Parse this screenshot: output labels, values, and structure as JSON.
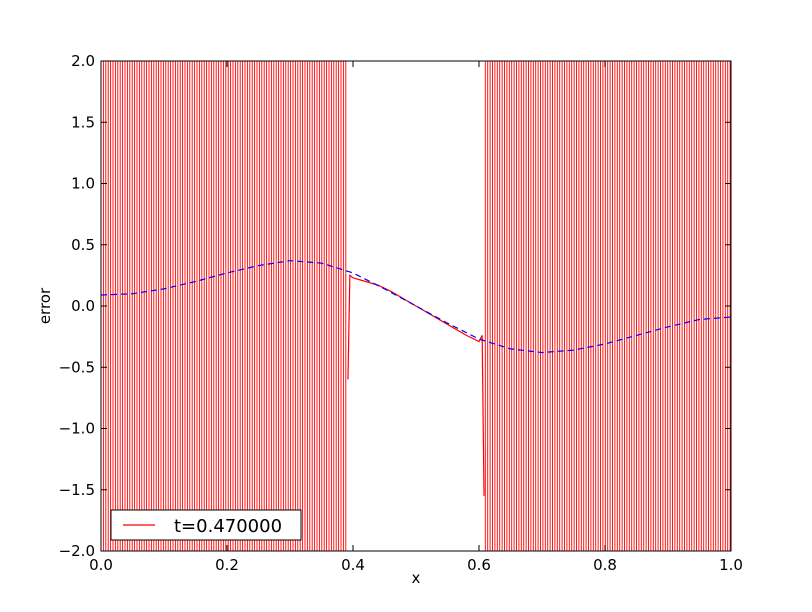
{
  "chart_data": {
    "type": "line",
    "title": "",
    "xlabel": "x",
    "ylabel": "error",
    "xlim": [
      0.0,
      1.0
    ],
    "ylim": [
      -2.0,
      2.0
    ],
    "grid": false,
    "legend_position": "lower-left",
    "x_ticks": [
      "0.0",
      "0.2",
      "0.4",
      "0.6",
      "0.8",
      "1.0"
    ],
    "y_ticks": [
      "−2.0",
      "−1.5",
      "−1.0",
      "−0.5",
      "0.0",
      "0.5",
      "1.0",
      "1.5",
      "2.0"
    ],
    "series": [
      {
        "name": "t=0.470000",
        "color": "#ff0000",
        "style": "solid",
        "oscillating_regions": [
          [
            0.0,
            0.39
          ],
          [
            0.61,
            1.0
          ]
        ],
        "oscillation_range": [
          -2.0,
          2.0
        ],
        "points": [
          [
            0.392,
            -0.6
          ],
          [
            0.395,
            0.25
          ],
          [
            0.4,
            0.23
          ],
          [
            0.42,
            0.2
          ],
          [
            0.44,
            0.17
          ],
          [
            0.46,
            0.12
          ],
          [
            0.48,
            0.06
          ],
          [
            0.5,
            0.0
          ],
          [
            0.52,
            -0.06
          ],
          [
            0.54,
            -0.12
          ],
          [
            0.56,
            -0.18
          ],
          [
            0.58,
            -0.24
          ],
          [
            0.6,
            -0.29
          ],
          [
            0.605,
            -0.24
          ],
          [
            0.608,
            -1.55
          ]
        ]
      },
      {
        "name": "",
        "color": "#0000ff",
        "style": "dashed",
        "x": [
          0.0,
          0.05,
          0.1,
          0.15,
          0.2,
          0.25,
          0.3,
          0.35,
          0.4,
          0.45,
          0.5,
          0.55,
          0.6,
          0.65,
          0.7,
          0.75,
          0.8,
          0.85,
          0.9,
          0.95,
          1.0
        ],
        "y": [
          0.09,
          0.1,
          0.14,
          0.2,
          0.27,
          0.33,
          0.37,
          0.35,
          0.27,
          0.14,
          0.0,
          -0.14,
          -0.27,
          -0.35,
          -0.38,
          -0.36,
          -0.31,
          -0.24,
          -0.17,
          -0.11,
          -0.09
        ]
      }
    ],
    "legend": [
      {
        "label": "t=0.470000",
        "color": "#ff0000"
      }
    ]
  }
}
